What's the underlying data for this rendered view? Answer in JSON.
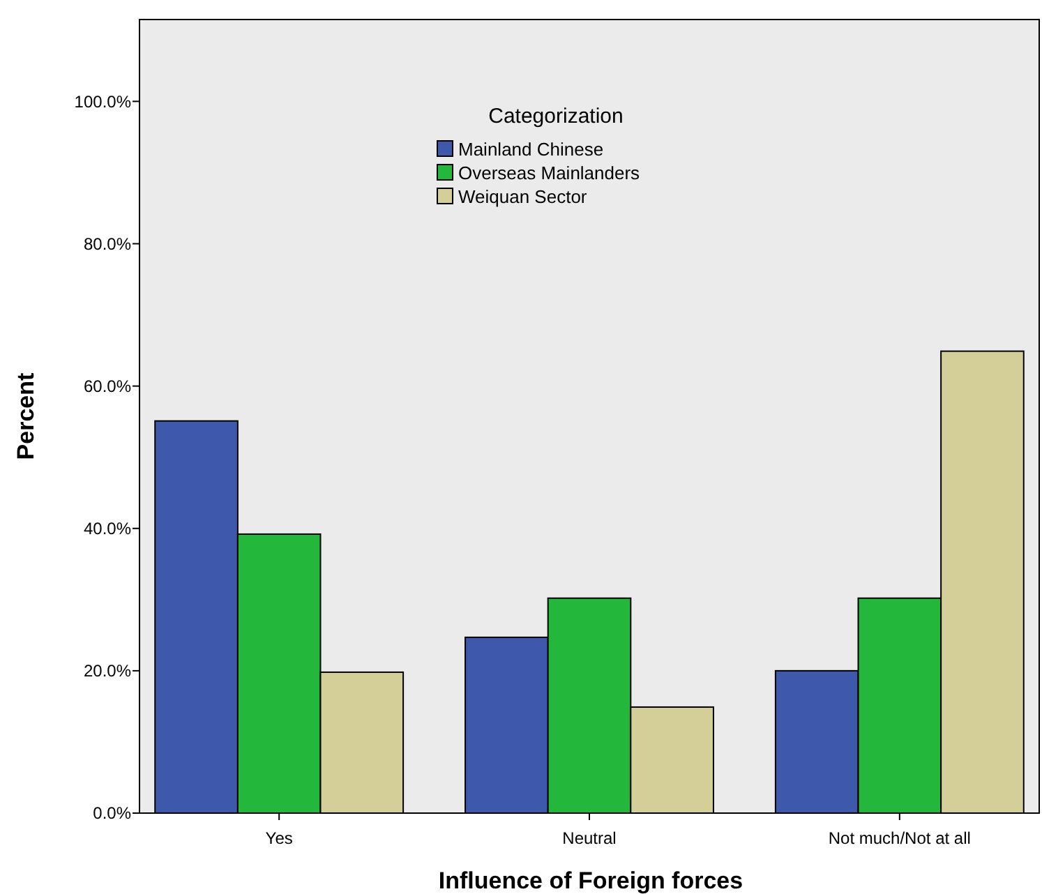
{
  "chart_data": {
    "type": "bar",
    "xlabel": "Influence of Foreign forces",
    "ylabel": "Percent",
    "legend_title": "Categorization",
    "legend": "top",
    "categories": [
      "Yes",
      "Neutral",
      "Not much/Not at all"
    ],
    "series": [
      {
        "name": "Mainland Chinese",
        "color": "#3e58ac",
        "values": [
          55.1,
          24.7,
          20.0
        ]
      },
      {
        "name": "Overseas Mainlanders",
        "color": "#23b83c",
        "values": [
          39.2,
          30.2,
          30.2
        ]
      },
      {
        "name": "Weiquan Sector",
        "color": "#d4cf98",
        "values": [
          19.8,
          14.9,
          64.9
        ]
      }
    ],
    "ylim": [
      0,
      111.5
    ],
    "yticks": [
      {
        "value": 0,
        "label": "0.0%"
      },
      {
        "value": 20,
        "label": "20.0%"
      },
      {
        "value": 40,
        "label": "40.0%"
      },
      {
        "value": 60,
        "label": "60.0%"
      },
      {
        "value": 80,
        "label": "80.0%"
      },
      {
        "value": 100,
        "label": "100.0%"
      }
    ]
  }
}
